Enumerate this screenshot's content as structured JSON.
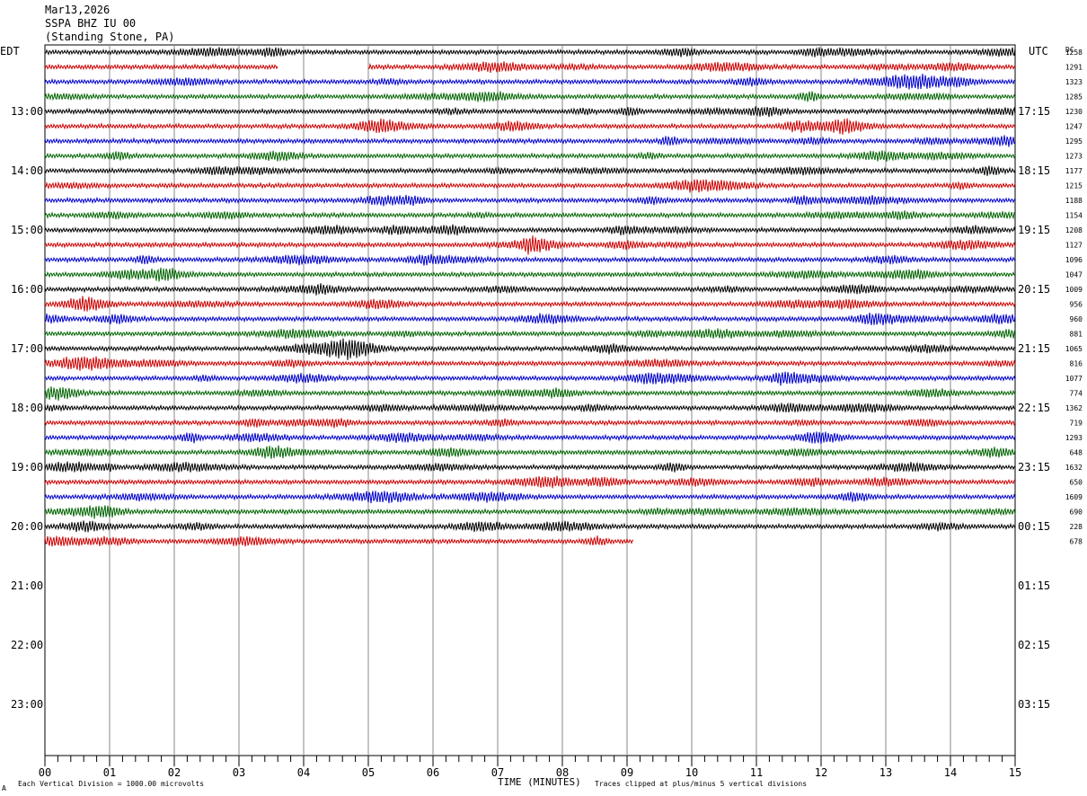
{
  "header": {
    "date": "Mar13,2026",
    "station": "SSPA BHZ IU 00",
    "location": "(Standing Stone, PA)"
  },
  "chart_data": {
    "type": "helicorder",
    "left_axis_title": "EDT",
    "right_axis_title": "UTC",
    "dc_title": "DC",
    "xlabel": "TIME (MINUTES)",
    "x_ticks": [
      "00",
      "01",
      "02",
      "03",
      "04",
      "05",
      "06",
      "07",
      "08",
      "09",
      "10",
      "11",
      "12",
      "13",
      "14",
      "15"
    ],
    "xlim": [
      0,
      15
    ],
    "rows_per_hour": 4,
    "hours_shown": 12,
    "left_hour_labels": [
      "13:00",
      "14:00",
      "15:00",
      "16:00",
      "17:00",
      "18:00",
      "19:00",
      "20:00",
      "21:00",
      "22:00",
      "23:00"
    ],
    "right_hour_labels": [
      "17:15",
      "18:15",
      "19:15",
      "20:15",
      "21:15",
      "22:15",
      "23:15",
      "00:15",
      "01:15",
      "02:15",
      "03:15"
    ],
    "trace_colors": [
      "#000000",
      "#cc0000",
      "#0000cc",
      "#006400"
    ],
    "dc_offsets": [
      "1258",
      "1291",
      "1323",
      "1285",
      "1230",
      "1247",
      "1295",
      "1273",
      "1177",
      "1215",
      "1188",
      "1154",
      "1208",
      "1127",
      "1096",
      "1047",
      "1009",
      "956",
      "960",
      "881",
      "1065",
      "816",
      "1077",
      "774",
      "1362",
      "719",
      "1293",
      "648",
      "1632",
      "650",
      "1609",
      "690",
      "228",
      "678"
    ],
    "trace_count": 34,
    "last_trace_end_minute": 9.1,
    "gap_row": 1,
    "gap_minutes": [
      3.6,
      5.0
    ],
    "footer_left": "Each Vertical Division = 1000.00 microvolts",
    "footer_right": "Traces clipped at plus/minus 5 vertical divisions",
    "footer_mark": "A"
  }
}
